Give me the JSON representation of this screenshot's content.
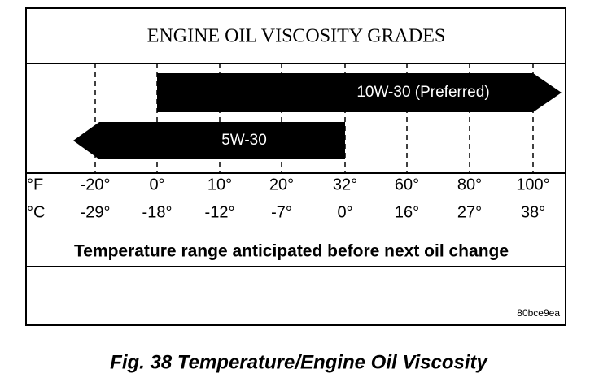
{
  "title": "ENGINE OIL VISCOSITY GRADES",
  "arrows": [
    {
      "label": "10W-30 (Preferred)"
    },
    {
      "label": "5W-30"
    }
  ],
  "scale": {
    "fahrenheit_unit": "°F",
    "celsius_unit": "°C",
    "fahrenheit": [
      "-20°",
      "0°",
      "10°",
      "20°",
      "32°",
      "60°",
      "80°",
      "100°"
    ],
    "celsius": [
      "-29°",
      "-18°",
      "-12°",
      "-7°",
      "0°",
      "16°",
      "27°",
      "38°"
    ]
  },
  "range_note": "Temperature range anticipated before next oil change",
  "code": "80bce9ea",
  "caption": "Fig. 38 Temperature/Engine Oil Viscosity"
}
